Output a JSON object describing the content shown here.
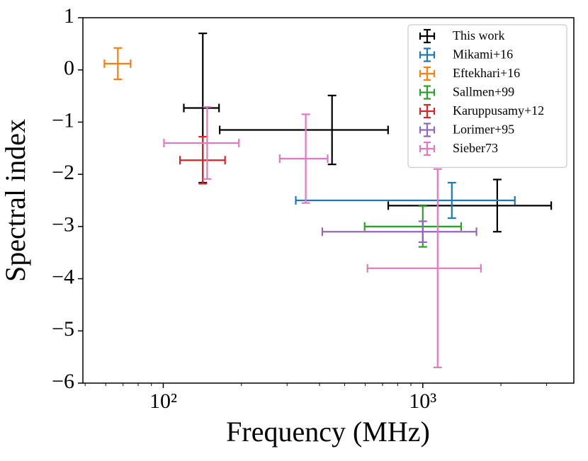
{
  "chart_data": {
    "type": "errorbar",
    "xlabel": "Frequency (MHz)",
    "ylabel": "Spectral index",
    "xscale": "log",
    "xlim": [
      49,
      3820
    ],
    "ylim": [
      -6,
      1
    ],
    "xticks": [
      {
        "value": 100,
        "label": "10²"
      },
      {
        "value": 1000,
        "label": "10³"
      }
    ],
    "xminorticks": [
      50,
      60,
      70,
      80,
      90,
      200,
      300,
      400,
      500,
      600,
      700,
      800,
      900,
      2000,
      3000
    ],
    "yticks": [
      {
        "value": -6,
        "label": "−6"
      },
      {
        "value": -5,
        "label": "−5"
      },
      {
        "value": -4,
        "label": "−4"
      },
      {
        "value": -3,
        "label": "−3"
      },
      {
        "value": -2,
        "label": "−2"
      },
      {
        "value": -1,
        "label": "−1"
      },
      0,
      1
    ],
    "legend": "upper right",
    "series": [
      {
        "name": "This work",
        "color": "#000000",
        "x": [
          142,
          447,
          1936
        ],
        "values": [
          -0.73,
          -1.15,
          -2.6
        ],
        "xerr": [
          [
            22,
            22
          ],
          [
            282,
            288
          ],
          [
            1200,
            1190
          ]
        ],
        "yerr": [
          [
            1.43,
            1.43
          ],
          [
            0.66,
            0.66
          ],
          [
            0.5,
            0.5
          ]
        ]
      },
      {
        "name": "Mikami+16",
        "color": "#1f77b4",
        "x": [
          1294
        ],
        "values": [
          -2.5
        ],
        "xerr": [
          [
            970,
            970
          ]
        ],
        "yerr": [
          [
            0.34,
            0.34
          ]
        ]
      },
      {
        "name": "Eftekhari+16",
        "color": "#ff7f0e",
        "x": [
          66.8
        ],
        "values": [
          0.12
        ],
        "xerr": [
          [
            7.5,
            8
          ]
        ],
        "yerr": [
          [
            0.3,
            0.3
          ]
        ]
      },
      {
        "name": "Sallmen+99",
        "color": "#2ca02c",
        "x": [
          1000
        ],
        "values": [
          -3.0
        ],
        "xerr": [
          [
            403,
            406
          ]
        ],
        "yerr": [
          [
            0.39,
            0.39
          ]
        ]
      },
      {
        "name": "Karuppusamy+12",
        "color": "#d62728",
        "x": [
          142
        ],
        "values": [
          -1.73
        ],
        "xerr": [
          [
            26,
            31
          ]
        ],
        "yerr": [
          [
            0.45,
            0.45
          ]
        ]
      },
      {
        "name": "Lorimer+95",
        "color": "#9467bd",
        "x": [
          1000
        ],
        "values": [
          -3.1
        ],
        "xerr": [
          [
            590,
            610
          ]
        ],
        "yerr": [
          [
            0.2,
            0.2
          ]
        ]
      },
      {
        "name": "Sieber73",
        "color": "#e377c2",
        "x": [
          147.6,
          354,
          1141
        ],
        "values": [
          -1.4,
          -1.7,
          -3.8
        ],
        "xerr": [
          [
            47,
            48
          ],
          [
            73,
            76
          ],
          [
            529,
            534
          ]
        ],
        "yerr": [
          [
            0.69,
            0.69
          ],
          [
            0.85,
            0.85
          ],
          [
            1.9,
            1.9
          ]
        ]
      }
    ]
  }
}
